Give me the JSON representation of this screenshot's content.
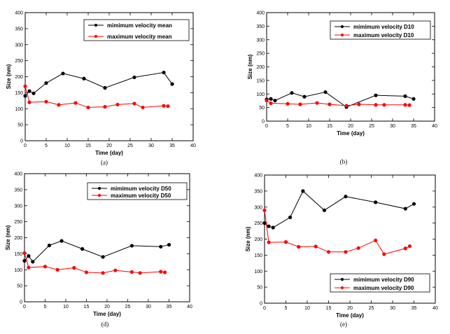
{
  "chart_data": [
    {
      "type": "line",
      "caption": "(a)",
      "xlabel": "Time (day)",
      "ylabel": "Size (nm)",
      "xlim": [
        0,
        40
      ],
      "ylim": [
        0,
        400
      ],
      "xticks": [
        0,
        5,
        10,
        15,
        20,
        25,
        30,
        35,
        40
      ],
      "yticks": [
        0,
        50,
        100,
        150,
        200,
        250,
        300,
        350,
        400
      ],
      "legend_position": "top-right",
      "series": [
        {
          "name": "mimimum velocity mean",
          "color": "#000000",
          "x": [
            0,
            1,
            2,
            5,
            9,
            14,
            19,
            26,
            33,
            35
          ],
          "y": [
            140,
            155,
            148,
            180,
            210,
            194,
            165,
            198,
            213,
            177
          ]
        },
        {
          "name": "maximum velocity mean",
          "color": "#ff0000",
          "x": [
            0,
            1,
            5,
            8,
            12,
            15,
            19,
            22,
            26,
            28,
            33,
            34
          ],
          "y": [
            170,
            120,
            122,
            112,
            118,
            104,
            106,
            113,
            116,
            104,
            109,
            108
          ]
        }
      ]
    },
    {
      "type": "line",
      "caption": "(b)",
      "xlabel": "Time (day)",
      "ylabel": "Size (nm)",
      "xlim": [
        0,
        40
      ],
      "ylim": [
        0,
        400
      ],
      "xticks": [
        0,
        5,
        10,
        15,
        20,
        25,
        30,
        35,
        40
      ],
      "yticks": [
        0,
        50,
        100,
        150,
        200,
        250,
        300,
        350,
        400
      ],
      "legend_position": "top-right",
      "series": [
        {
          "name": "mimimum velocity D10",
          "color": "#000000",
          "x": [
            0,
            1,
            2,
            6,
            9,
            14,
            19,
            26,
            33,
            35
          ],
          "y": [
            80,
            82,
            76,
            104,
            90,
            107,
            52,
            95,
            92,
            82
          ]
        },
        {
          "name": "maximum velocity D10",
          "color": "#ff0000",
          "x": [
            0,
            1,
            5,
            8,
            12,
            15,
            19,
            22,
            26,
            28,
            33,
            34
          ],
          "y": [
            76,
            66,
            64,
            62,
            67,
            62,
            57,
            62,
            60,
            60,
            60,
            59
          ]
        }
      ]
    },
    {
      "type": "line",
      "caption": "(d)",
      "xlabel": "Time (day)",
      "ylabel": "Size (nm)",
      "xlim": [
        0,
        40
      ],
      "ylim": [
        0,
        400
      ],
      "xticks": [
        0,
        5,
        10,
        15,
        20,
        25,
        30,
        35,
        40
      ],
      "yticks": [
        0,
        50,
        100,
        150,
        200,
        250,
        300,
        350,
        400
      ],
      "legend_position": "top-right",
      "series": [
        {
          "name": "mimimum velocity D50",
          "color": "#000000",
          "x": [
            0,
            1,
            2,
            6,
            9,
            14,
            19,
            26,
            33,
            35
          ],
          "y": [
            128,
            143,
            125,
            176,
            190,
            165,
            140,
            175,
            172,
            178
          ]
        },
        {
          "name": "maximum velocity D50",
          "color": "#ff0000",
          "x": [
            0,
            1,
            5,
            8,
            12,
            15,
            19,
            22,
            26,
            28,
            33,
            34
          ],
          "y": [
            152,
            107,
            110,
            100,
            106,
            92,
            90,
            98,
            93,
            90,
            94,
            92
          ]
        }
      ]
    },
    {
      "type": "line",
      "caption": "(e)",
      "xlabel": "Time (day)",
      "ylabel": "Size (nm)",
      "xlim": [
        0,
        40
      ],
      "ylim": [
        0,
        400
      ],
      "xticks": [
        0,
        5,
        10,
        15,
        20,
        25,
        30,
        35,
        40
      ],
      "yticks": [
        0,
        50,
        100,
        150,
        200,
        250,
        300,
        350,
        400
      ],
      "legend_position": "bottom-right",
      "series": [
        {
          "name": "mimimum velocity D90",
          "color": "#000000",
          "x": [
            0,
            1,
            2,
            6,
            9,
            14,
            19,
            26,
            33,
            35
          ],
          "y": [
            250,
            240,
            236,
            268,
            350,
            290,
            333,
            315,
            295,
            310
          ]
        },
        {
          "name": "maximum velocity D90",
          "color": "#ff0000",
          "x": [
            0,
            1,
            5,
            8,
            12,
            15,
            19,
            22,
            26,
            28,
            33,
            34
          ],
          "y": [
            290,
            190,
            191,
            176,
            177,
            160,
            160,
            172,
            196,
            153,
            171,
            178
          ]
        }
      ]
    }
  ]
}
